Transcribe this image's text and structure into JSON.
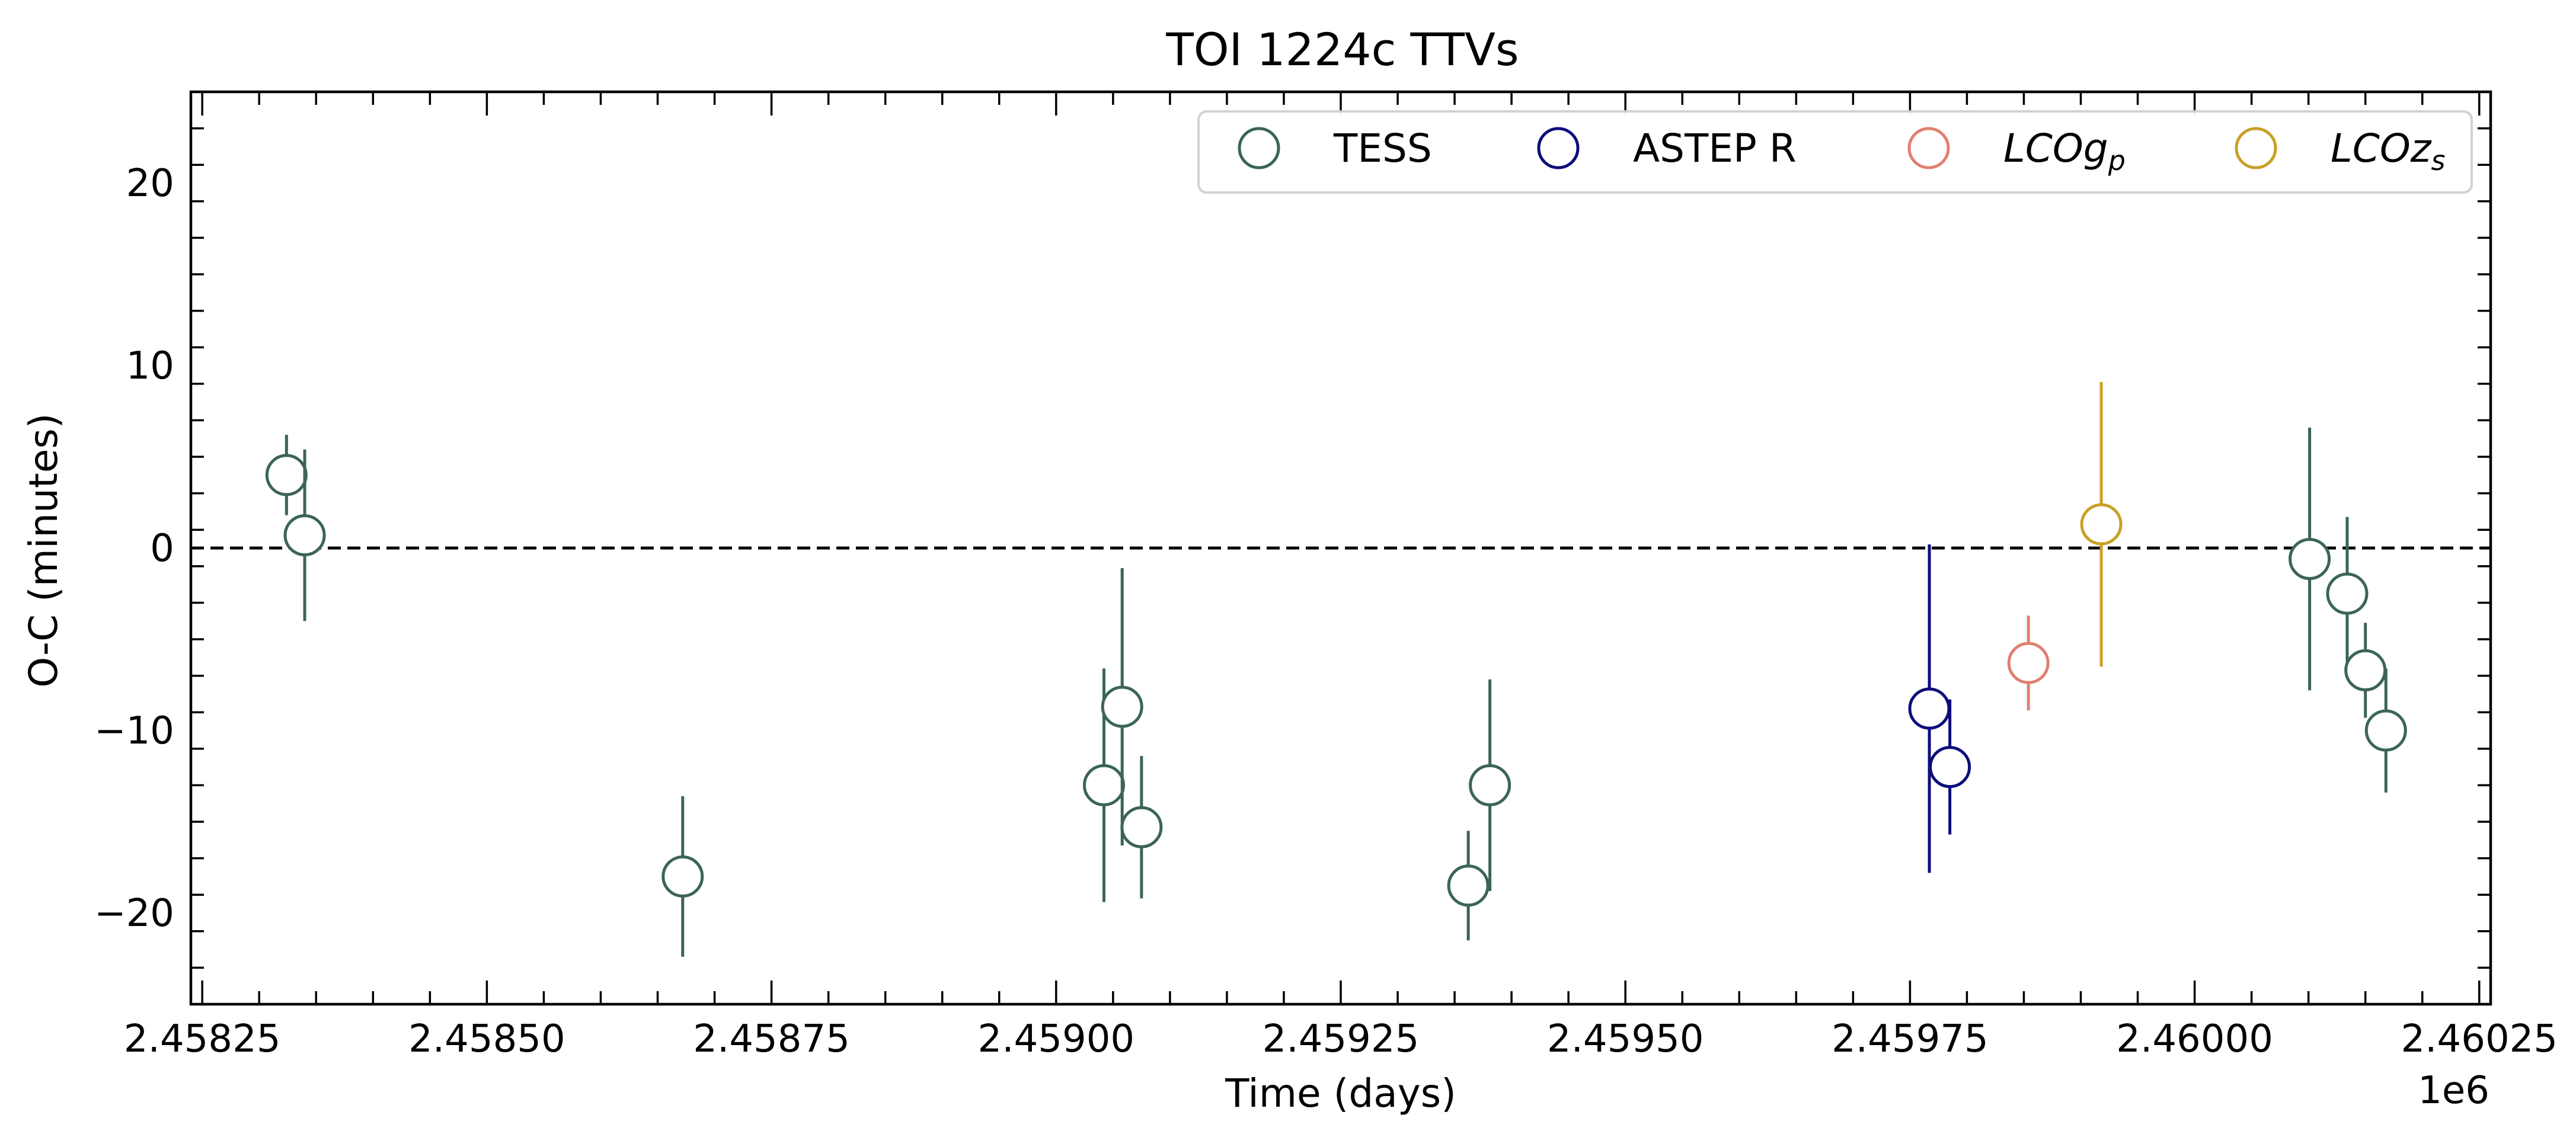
{
  "chart_data": {
    "type": "scatter",
    "title": "TOI 1224c TTVs",
    "xlabel": "Time (days)",
    "ylabel": "O-C (minutes)",
    "x_offset_label": "1e6",
    "xlim": [
      2458240,
      2460260
    ],
    "ylim": [
      -25,
      25
    ],
    "x_ticks": [
      2458250,
      2458500,
      2458750,
      2459000,
      2459250,
      2459500,
      2459750,
      2460000,
      2460250
    ],
    "x_tick_labels": [
      "2.45825",
      "2.45850",
      "2.45875",
      "2.45900",
      "2.45925",
      "2.45950",
      "2.45975",
      "2.46000",
      "2.46025"
    ],
    "y_ticks": [
      -20,
      -10,
      0,
      10,
      20
    ],
    "y_tick_labels": [
      "−20",
      "−10",
      "0",
      "10",
      "20"
    ],
    "reference_line": {
      "y": 0,
      "style": "dashed",
      "color": "#000000"
    },
    "grid": false,
    "legend": {
      "placement": "top-right",
      "columns": 4
    },
    "series": [
      {
        "name": "TESS",
        "name_main": "TESS",
        "name_sub": "",
        "italic": false,
        "color": "#3b6553",
        "points": [
          {
            "x": 2458324,
            "y": 4.0,
            "err": 2.2
          },
          {
            "x": 2458340,
            "y": 0.7,
            "err": 4.7
          },
          {
            "x": 2458672,
            "y": -18.0,
            "err": 4.4
          },
          {
            "x": 2459042,
            "y": -13.0,
            "err": 6.4
          },
          {
            "x": 2459058,
            "y": -8.7,
            "err": 7.6
          },
          {
            "x": 2459075,
            "y": -15.3,
            "err": 3.9
          },
          {
            "x": 2459362,
            "y": -18.5,
            "err": 3.0
          },
          {
            "x": 2459381,
            "y": -13.0,
            "err": 5.8
          },
          {
            "x": 2460101,
            "y": -0.6,
            "err": 7.2
          },
          {
            "x": 2460134,
            "y": -2.5,
            "err": 4.2
          },
          {
            "x": 2460150,
            "y": -6.7,
            "err": 2.6
          },
          {
            "x": 2460168,
            "y": -10.0,
            "err": 3.4
          }
        ]
      },
      {
        "name": "ASTEP R",
        "name_main": "ASTEP R",
        "name_sub": "",
        "italic": false,
        "color": "#0c0c7c",
        "points": [
          {
            "x": 2459767,
            "y": -8.8,
            "err": 9.0
          },
          {
            "x": 2459785,
            "y": -12.0,
            "err": 3.7
          }
        ]
      },
      {
        "name": "LCOgp",
        "name_main": "LCOg",
        "name_sub": "p",
        "italic": true,
        "color": "#e08070",
        "points": [
          {
            "x": 2459854,
            "y": -6.3,
            "err": 2.6
          }
        ]
      },
      {
        "name": "LCOzs",
        "name_main": "LCOz",
        "name_sub": "s",
        "italic": true,
        "color": "#c9a026",
        "points": [
          {
            "x": 2459918,
            "y": 1.3,
            "err": 7.8
          }
        ]
      }
    ]
  }
}
